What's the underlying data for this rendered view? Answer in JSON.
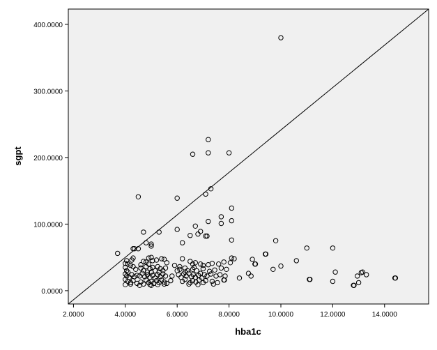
{
  "chart_data": {
    "type": "scatter",
    "xlabel": "hba1c",
    "ylabel": "sgpt",
    "xlim": [
      1.8,
      15.7
    ],
    "ylim": [
      -20,
      423
    ],
    "x_ticks": [
      2,
      4,
      6,
      8,
      10,
      12,
      14
    ],
    "y_ticks": [
      0,
      100,
      200,
      300,
      400
    ],
    "x_tick_labels": [
      "2.0000",
      "4.0000",
      "6.0000",
      "8.0000",
      "10.0000",
      "12.0000",
      "14.0000"
    ],
    "y_tick_labels": [
      "0.0000",
      "100.0000",
      "200.0000",
      "300.0000",
      "400.0000"
    ],
    "reference_line": {
      "type": "y=x fit line",
      "from": [
        1.8,
        -20
      ],
      "to": [
        15.7,
        423
      ]
    },
    "background": "#f0f0f0",
    "marker": "open-circle",
    "grid": false,
    "series": [
      {
        "points": [
          [
            10.0,
            380
          ],
          [
            7.2,
            227
          ],
          [
            6.6,
            205
          ],
          [
            7.2,
            207
          ],
          [
            8.0,
            207
          ],
          [
            7.3,
            153
          ],
          [
            7.1,
            145
          ],
          [
            4.5,
            141
          ],
          [
            6.0,
            139
          ],
          [
            8.1,
            124
          ],
          [
            7.7,
            111
          ],
          [
            8.1,
            105
          ],
          [
            7.2,
            104
          ],
          [
            7.7,
            101
          ],
          [
            6.7,
            97
          ],
          [
            6.0,
            92
          ],
          [
            4.7,
            88
          ],
          [
            5.3,
            88
          ],
          [
            6.9,
            89
          ],
          [
            6.8,
            85
          ],
          [
            6.5,
            83
          ],
          [
            7.1,
            82
          ],
          [
            7.15,
            82
          ],
          [
            8.1,
            76
          ],
          [
            9.8,
            75
          ],
          [
            4.8,
            72
          ],
          [
            6.2,
            72
          ],
          [
            5.0,
            70
          ],
          [
            5.0,
            67
          ],
          [
            11.0,
            64
          ],
          [
            12.0,
            64
          ],
          [
            4.3,
            63
          ],
          [
            4.35,
            63
          ],
          [
            4.5,
            63
          ],
          [
            3.7,
            56
          ],
          [
            9.4,
            55
          ],
          [
            9.42,
            55
          ],
          [
            4.3,
            49
          ],
          [
            4.9,
            49
          ],
          [
            5.0,
            50
          ],
          [
            6.2,
            48
          ],
          [
            8.1,
            49
          ],
          [
            8.2,
            48
          ],
          [
            8.9,
            47
          ],
          [
            10.6,
            45
          ],
          [
            4.0,
            41
          ],
          [
            4.1,
            40
          ],
          [
            4.2,
            38
          ],
          [
            4.6,
            39
          ],
          [
            4.7,
            44
          ],
          [
            4.8,
            43
          ],
          [
            4.9,
            40
          ],
          [
            5.05,
            45
          ],
          [
            5.2,
            46
          ],
          [
            5.4,
            48
          ],
          [
            5.5,
            47
          ],
          [
            5.6,
            42
          ],
          [
            5.9,
            38
          ],
          [
            6.1,
            36
          ],
          [
            6.3,
            34
          ],
          [
            6.5,
            44
          ],
          [
            6.6,
            40
          ],
          [
            6.7,
            42
          ],
          [
            6.9,
            40
          ],
          [
            7.0,
            38
          ],
          [
            7.2,
            39
          ],
          [
            7.35,
            41
          ],
          [
            7.6,
            40
          ],
          [
            7.8,
            43
          ],
          [
            8.05,
            42
          ],
          [
            9.0,
            40
          ],
          [
            9.02,
            40
          ],
          [
            10.0,
            37
          ],
          [
            4.0,
            35
          ],
          [
            4.05,
            30
          ],
          [
            4.1,
            28
          ],
          [
            4.3,
            36
          ],
          [
            4.4,
            32
          ],
          [
            4.6,
            34
          ],
          [
            4.7,
            30
          ],
          [
            4.8,
            36
          ],
          [
            4.85,
            28
          ],
          [
            4.95,
            33
          ],
          [
            5.05,
            35
          ],
          [
            5.15,
            30
          ],
          [
            5.25,
            36
          ],
          [
            5.35,
            33
          ],
          [
            5.45,
            30
          ],
          [
            5.55,
            34
          ],
          [
            6.0,
            30
          ],
          [
            6.1,
            32
          ],
          [
            6.3,
            28
          ],
          [
            6.4,
            30
          ],
          [
            6.6,
            32
          ],
          [
            6.65,
            35
          ],
          [
            6.75,
            30
          ],
          [
            6.9,
            26
          ],
          [
            7.0,
            33
          ],
          [
            7.25,
            29
          ],
          [
            7.45,
            31
          ],
          [
            7.7,
            34
          ],
          [
            7.9,
            32
          ],
          [
            8.75,
            26
          ],
          [
            9.7,
            32
          ],
          [
            4.0,
            25
          ],
          [
            4.05,
            22
          ],
          [
            4.15,
            20
          ],
          [
            4.25,
            24
          ],
          [
            4.35,
            21
          ],
          [
            4.45,
            23
          ],
          [
            4.55,
            22
          ],
          [
            4.65,
            26
          ],
          [
            4.75,
            21
          ],
          [
            4.85,
            24
          ],
          [
            4.95,
            20
          ],
          [
            5.05,
            23
          ],
          [
            5.15,
            19
          ],
          [
            5.25,
            24
          ],
          [
            5.35,
            21
          ],
          [
            5.45,
            25
          ],
          [
            5.55,
            22
          ],
          [
            5.8,
            22
          ],
          [
            6.05,
            24
          ],
          [
            6.15,
            20
          ],
          [
            6.25,
            25
          ],
          [
            6.35,
            22
          ],
          [
            6.45,
            26
          ],
          [
            6.55,
            21
          ],
          [
            6.62,
            24
          ],
          [
            6.7,
            20
          ],
          [
            6.82,
            23
          ],
          [
            6.95,
            19
          ],
          [
            7.05,
            24
          ],
          [
            7.15,
            22
          ],
          [
            7.3,
            25
          ],
          [
            7.5,
            22
          ],
          [
            7.65,
            24
          ],
          [
            7.85,
            22
          ],
          [
            8.4,
            19
          ],
          [
            8.85,
            22
          ],
          [
            12.1,
            28
          ],
          [
            12.95,
            22
          ],
          [
            13.1,
            27
          ],
          [
            13.15,
            28
          ],
          [
            13.3,
            24
          ],
          [
            4.0,
            17
          ],
          [
            4.1,
            14
          ],
          [
            4.2,
            12
          ],
          [
            4.3,
            15
          ],
          [
            4.45,
            11
          ],
          [
            4.6,
            13
          ],
          [
            4.7,
            10
          ],
          [
            4.8,
            16
          ],
          [
            4.9,
            12
          ],
          [
            5.0,
            14
          ],
          [
            5.1,
            11
          ],
          [
            5.2,
            15
          ],
          [
            5.3,
            12
          ],
          [
            5.4,
            16
          ],
          [
            5.5,
            13
          ],
          [
            5.6,
            11
          ],
          [
            5.75,
            15
          ],
          [
            6.2,
            14
          ],
          [
            6.3,
            17
          ],
          [
            6.5,
            12
          ],
          [
            6.6,
            15
          ],
          [
            6.72,
            13
          ],
          [
            6.85,
            16
          ],
          [
            7.0,
            12
          ],
          [
            7.1,
            15
          ],
          [
            7.35,
            14
          ],
          [
            7.55,
            12
          ],
          [
            7.8,
            16
          ],
          [
            7.82,
            16
          ],
          [
            11.1,
            17
          ],
          [
            11.12,
            17
          ],
          [
            12.0,
            14
          ],
          [
            13.0,
            12
          ],
          [
            14.4,
            19
          ],
          [
            14.42,
            19
          ],
          [
            12.8,
            8
          ],
          [
            12.82,
            8
          ],
          [
            4.0,
            9
          ],
          [
            4.2,
            10
          ],
          [
            4.55,
            8
          ],
          [
            4.95,
            9
          ],
          [
            5.0,
            8
          ],
          [
            5.25,
            9
          ],
          [
            5.5,
            10
          ],
          [
            6.45,
            10
          ],
          [
            6.8,
            9
          ],
          [
            7.4,
            10
          ],
          [
            4.05,
            45
          ],
          [
            4.25,
            46
          ],
          [
            5.0,
            28
          ],
          [
            5.3,
            28
          ]
        ]
      }
    ]
  }
}
